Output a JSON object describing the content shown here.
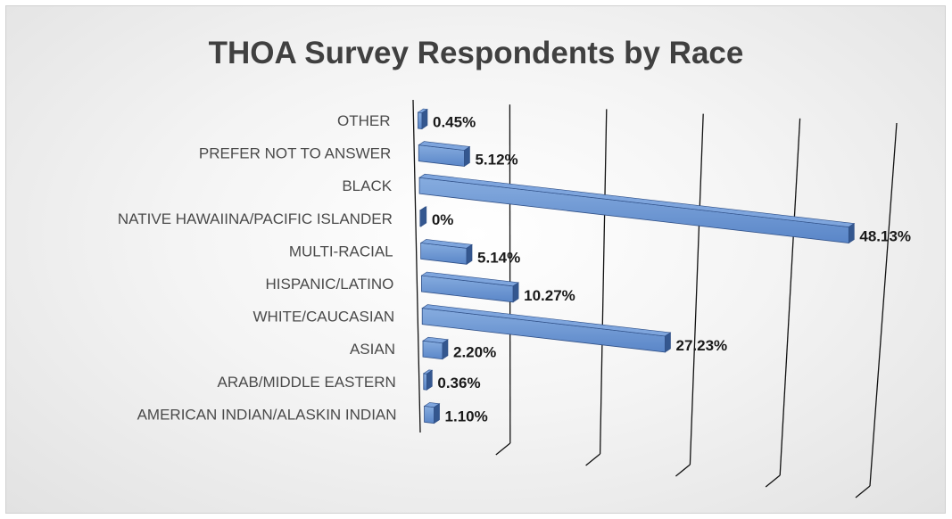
{
  "chart_data": {
    "type": "bar",
    "orientation": "horizontal",
    "title": "THOA Survey Respondents by Race",
    "categories": [
      "OTHER",
      "PREFER NOT TO ANSWER",
      "BLACK",
      "NATIVE HAWAIINA/PACIFIC ISLANDER",
      "MULTI-RACIAL",
      "HISPANIC/LATINO",
      "WHITE/CAUCASIAN",
      "ASIAN",
      "ARAB/MIDDLE EASTERN",
      "AMERICAN INDIAN/ALASKIN INDIAN"
    ],
    "values": [
      0.45,
      5.12,
      48.13,
      0,
      5.14,
      10.27,
      27.23,
      2.2,
      0.36,
      1.1
    ],
    "data_labels": [
      "0.45%",
      "5.12%",
      "48.13%",
      "0%",
      "5.14%",
      "10.27%",
      "27.23%",
      "2.20%",
      "0.36%",
      "1.10%"
    ],
    "xlim": [
      0,
      50
    ],
    "grid": true,
    "legend": "none",
    "colors": {
      "bar": "#5b87c9",
      "bar_light": "#7ea5dd",
      "bar_side": "#34578f",
      "bar_outline": "#2f4f86",
      "gridline": "#111111"
    }
  }
}
